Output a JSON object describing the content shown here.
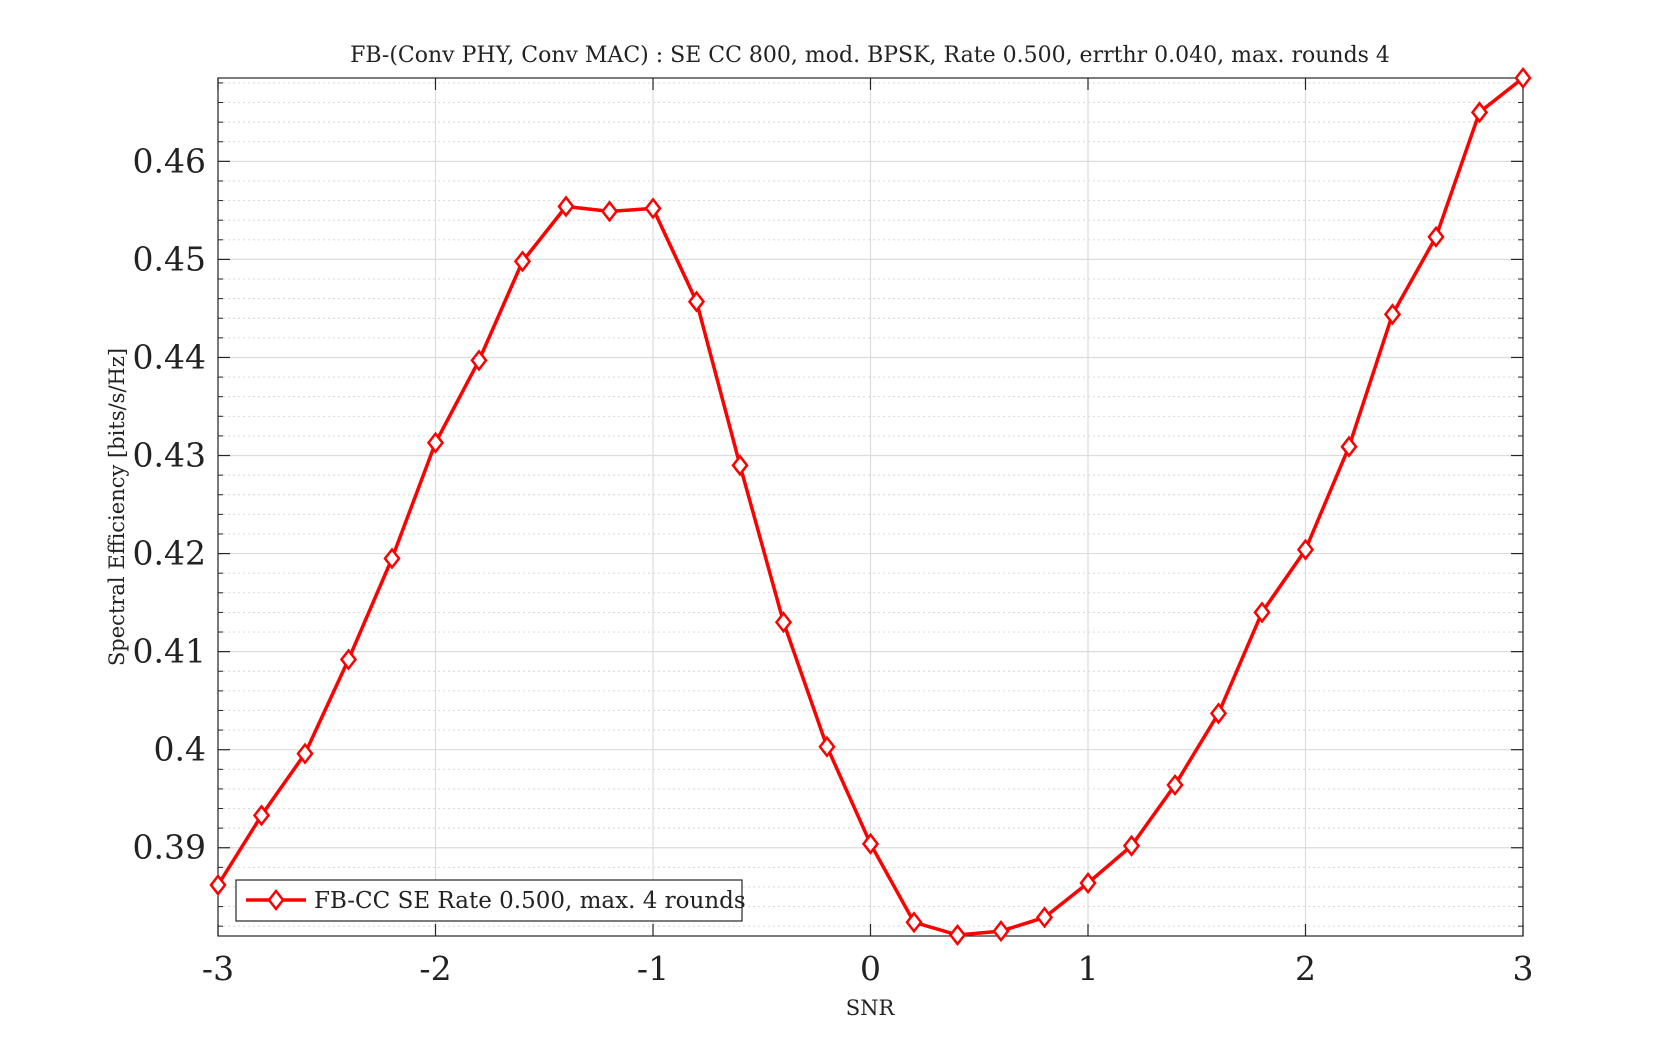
{
  "chart_data": {
    "type": "line",
    "title": "FB-(Conv PHY, Conv MAC) : SE CC 800, mod. BPSK, Rate 0.500, errthr 0.040, max. rounds 4",
    "xlabel": "SNR",
    "ylabel": "Spectral Efficiency [bits/s/Hz]",
    "xlim": [
      -3,
      3
    ],
    "ylim": [
      0.381,
      0.4685
    ],
    "xticks": [
      -3,
      -2,
      -1,
      0,
      1,
      2,
      3
    ],
    "xtick_labels": [
      "-3",
      "-2",
      "-1",
      "0",
      "1",
      "2",
      "3"
    ],
    "yticks": [
      0.39,
      0.4,
      0.41,
      0.42,
      0.43,
      0.44,
      0.45,
      0.46
    ],
    "ytick_labels": [
      "0.39",
      "0.4",
      "0.41",
      "0.42",
      "0.43",
      "0.44",
      "0.45",
      "0.46"
    ],
    "grid": true,
    "minor_grid": true,
    "legend_position": "bottom-left",
    "series": [
      {
        "name": "FB-CC SE Rate 0.500, max. 4 rounds",
        "color": "#ff0000",
        "marker": "diamond",
        "x": [
          -3.0,
          -2.8,
          -2.6,
          -2.4,
          -2.2,
          -2.0,
          -1.8,
          -1.6,
          -1.4,
          -1.2,
          -1.0,
          -0.8,
          -0.6,
          -0.4,
          -0.2,
          0.0,
          0.2,
          0.4,
          0.6,
          0.8,
          1.0,
          1.2,
          1.4,
          1.6,
          1.8,
          2.0,
          2.2,
          2.4,
          2.6,
          2.8,
          3.0
        ],
        "y": [
          0.3862,
          0.3933,
          0.3996,
          0.4092,
          0.4195,
          0.4313,
          0.4397,
          0.4498,
          0.4554,
          0.4549,
          0.4552,
          0.4457,
          0.429,
          0.413,
          0.4003,
          0.3904,
          0.3824,
          0.3811,
          0.3815,
          0.3829,
          0.3864,
          0.3902,
          0.3964,
          0.4037,
          0.414,
          0.4204,
          0.4309,
          0.4444,
          0.4523,
          0.465,
          0.4685
        ]
      }
    ]
  }
}
